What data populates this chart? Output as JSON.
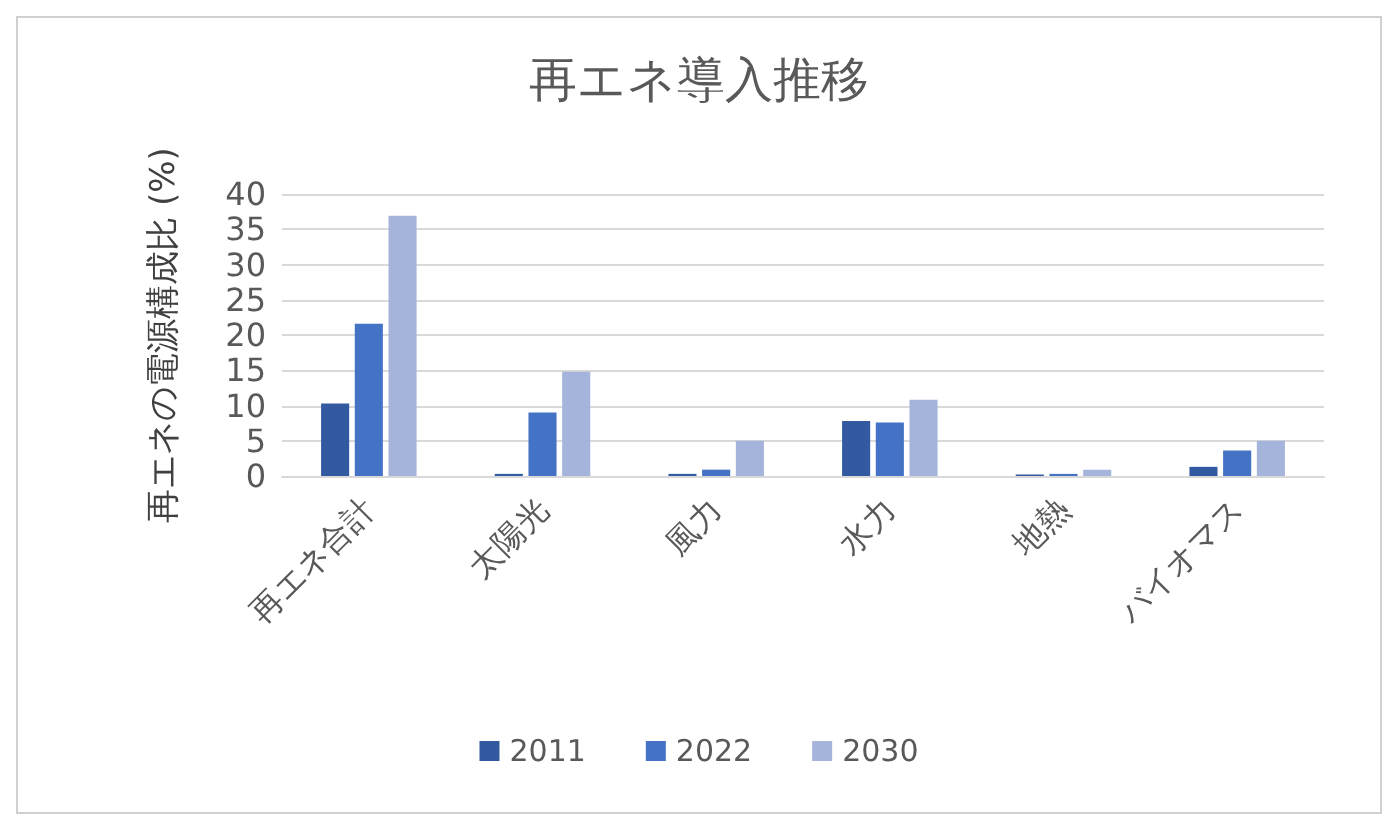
{
  "chart_data": {
    "type": "bar",
    "title": "再エネ導入推移",
    "ylabel": "再エネの電源構成比 (%)",
    "categories": [
      "再エネ合計",
      "太陽光",
      "風力",
      "水力",
      "地熱",
      "バイオマス"
    ],
    "series": [
      {
        "name": "2011",
        "color": "#335aa1",
        "values": [
          10.3,
          0.3,
          0.3,
          7.8,
          0.2,
          1.3
        ]
      },
      {
        "name": "2022",
        "color": "#4472c4",
        "values": [
          21.6,
          9,
          0.9,
          7.6,
          0.3,
          3.6
        ]
      },
      {
        "name": "2030",
        "color": "#a5b4db",
        "values": [
          36.9,
          14.8,
          5,
          10.8,
          0.9,
          5
        ]
      }
    ],
    "ylim": [
      0,
      40
    ],
    "yticks": [
      0,
      5,
      10,
      15,
      20,
      25,
      30,
      35,
      40
    ],
    "grid": "y",
    "legend": "bottom"
  }
}
